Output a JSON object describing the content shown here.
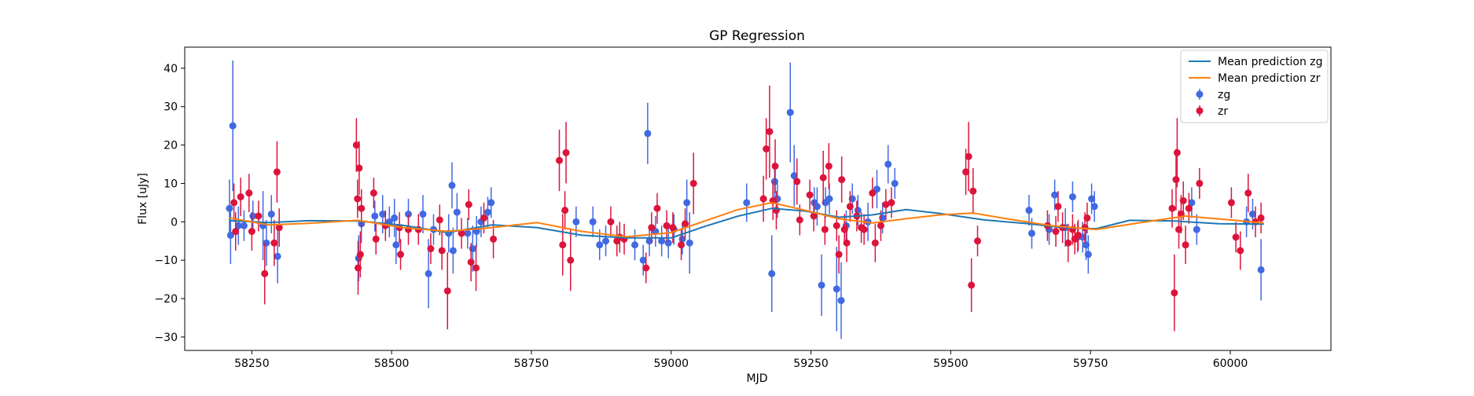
{
  "chart_data": {
    "type": "scatter",
    "title": "GP Regression",
    "xlabel": "MJD",
    "ylabel": "Flux [uJy]",
    "xlim": [
      58130,
      60180
    ],
    "ylim": [
      -33.5,
      45.5
    ],
    "xticks": [
      58250,
      58500,
      58750,
      59000,
      59250,
      59500,
      59750,
      60000
    ],
    "yticks": [
      -30,
      -20,
      -10,
      0,
      10,
      20,
      30,
      40
    ],
    "xtick_labels": [
      "58250",
      "58500",
      "58750",
      "59000",
      "59250",
      "59500",
      "59750",
      "60000"
    ],
    "ytick_labels": [
      "−30",
      "−20",
      "−10",
      "0",
      "10",
      "20",
      "30",
      "40"
    ],
    "grid": false,
    "legend_position": "top-right",
    "series": [
      {
        "name": "Mean prediction zg",
        "kind": "line",
        "color": "#1f77b4",
        "x": [
          58210,
          58280,
          58350,
          58440,
          58520,
          58600,
          58680,
          58760,
          58840,
          58920,
          59000,
          59060,
          59120,
          59180,
          59240,
          59300,
          59360,
          59420,
          59480,
          59560,
          59640,
          59700,
          59760,
          59820,
          59900,
          59980,
          60060
        ],
        "y": [
          0.3,
          -0.2,
          0.3,
          0.2,
          -0.9,
          -2.8,
          -0.8,
          -1.5,
          -3.5,
          -4.2,
          -4.2,
          -1.2,
          1.5,
          3.5,
          2.8,
          1.2,
          1.8,
          3.2,
          2.2,
          0.5,
          -0.5,
          -1.5,
          -1.8,
          0.4,
          0.2,
          -0.5,
          -0.6
        ]
      },
      {
        "name": "Mean prediction zr",
        "kind": "line",
        "color": "#ff7f0e",
        "x": [
          58210,
          58280,
          58350,
          58440,
          58520,
          58600,
          58680,
          58760,
          58840,
          58920,
          59000,
          59060,
          59120,
          59180,
          59240,
          59300,
          59360,
          59420,
          59480,
          59540,
          59600,
          59680,
          59760,
          59840,
          59920,
          60000,
          60060
        ],
        "y": [
          1.0,
          -0.8,
          -0.4,
          0.4,
          -1.5,
          -2.5,
          -1.5,
          -0.2,
          -2.5,
          -3.9,
          -2.8,
          0.2,
          3.2,
          5.0,
          3.0,
          0.8,
          -0.3,
          0.8,
          1.8,
          2.3,
          0.8,
          -1.0,
          -2.0,
          -0.2,
          1.5,
          0.5,
          -0.3
        ]
      },
      {
        "name": "zg",
        "kind": "errorbar",
        "color": "#4169e1",
        "points": [
          [
            58210,
            3.5,
            7.5
          ],
          [
            58212,
            -3.5,
            7.5
          ],
          [
            58216,
            25,
            17
          ],
          [
            58226,
            -1,
            5
          ],
          [
            58236,
            -1,
            4
          ],
          [
            58252,
            1.5,
            4
          ],
          [
            58270,
            -1,
            9
          ],
          [
            58276,
            -5.5,
            6
          ],
          [
            58285,
            2,
            5
          ],
          [
            58296,
            -9,
            7
          ],
          [
            58441,
            -9.5,
            6
          ],
          [
            58446,
            -0.5,
            5
          ],
          [
            58470,
            1.5,
            4
          ],
          [
            58484,
            2,
            5
          ],
          [
            58496,
            0,
            4
          ],
          [
            58505,
            1,
            5
          ],
          [
            58508,
            -6,
            5
          ],
          [
            58530,
            2,
            4
          ],
          [
            58556,
            2,
            5
          ],
          [
            58566,
            -13.5,
            9
          ],
          [
            58575,
            -2,
            4
          ],
          [
            58602,
            -3,
            5
          ],
          [
            58608,
            9.5,
            6
          ],
          [
            58610,
            -7.5,
            6
          ],
          [
            58617,
            2.5,
            5
          ],
          [
            58636,
            -3,
            4
          ],
          [
            58645,
            -7,
            6
          ],
          [
            58652,
            -2.5,
            4
          ],
          [
            58660,
            0,
            4
          ],
          [
            58672,
            2.5,
            4
          ],
          [
            58678,
            5,
            4
          ],
          [
            58830,
            0,
            4
          ],
          [
            58860,
            0,
            4
          ],
          [
            58872,
            -6,
            4
          ],
          [
            58883,
            -5,
            4
          ],
          [
            58935,
            -6,
            4
          ],
          [
            58950,
            -10,
            4
          ],
          [
            58958,
            23,
            8
          ],
          [
            58961,
            -5,
            4
          ],
          [
            58972,
            -2.5,
            4
          ],
          [
            58983,
            -5,
            4
          ],
          [
            58995,
            -5.5,
            4
          ],
          [
            59005,
            -2,
            4
          ],
          [
            59020,
            -4.5,
            4
          ],
          [
            59028,
            5,
            6
          ],
          [
            59033,
            -5.5,
            8
          ],
          [
            59135,
            5,
            5
          ],
          [
            59180,
            -13.5,
            10
          ],
          [
            59185,
            10.5,
            5
          ],
          [
            59190,
            6,
            5
          ],
          [
            59213,
            28.5,
            13
          ],
          [
            59220,
            12,
            8
          ],
          [
            59256,
            5,
            4
          ],
          [
            59261,
            4,
            5
          ],
          [
            59269,
            -16.5,
            8
          ],
          [
            59276,
            5,
            4
          ],
          [
            59283,
            6,
            4
          ],
          [
            59296,
            -17.5,
            11
          ],
          [
            59304,
            -20.5,
            10
          ],
          [
            59313,
            -1,
            4
          ],
          [
            59324,
            6,
            4
          ],
          [
            59334,
            3,
            4
          ],
          [
            59352,
            0,
            5
          ],
          [
            59368,
            8.5,
            5
          ],
          [
            59378,
            1,
            4
          ],
          [
            59388,
            15,
            5
          ],
          [
            59400,
            10,
            4
          ],
          [
            59640,
            3,
            4
          ],
          [
            59645,
            -3,
            4
          ],
          [
            59676,
            -2,
            4
          ],
          [
            59686,
            7,
            4
          ],
          [
            59705,
            -1.5,
            5
          ],
          [
            59718,
            6.5,
            4
          ],
          [
            59727,
            -4,
            4
          ],
          [
            59736,
            -4,
            4
          ],
          [
            59742,
            -6,
            4
          ],
          [
            59746,
            -8.5,
            5
          ],
          [
            59752,
            6,
            4
          ],
          [
            59757,
            4,
            4
          ],
          [
            59931,
            5,
            4
          ],
          [
            59940,
            -2,
            4
          ],
          [
            60029,
            0,
            4
          ],
          [
            60040,
            2,
            4
          ],
          [
            60055,
            -12.5,
            8
          ]
        ]
      },
      {
        "name": "zr",
        "kind": "errorbar",
        "color": "#dc143c",
        "points": [
          [
            58218,
            5,
            5
          ],
          [
            58221,
            -2.5,
            5
          ],
          [
            58230,
            6.5,
            5
          ],
          [
            58245,
            7.5,
            5
          ],
          [
            58250,
            -2.5,
            5
          ],
          [
            58262,
            1.5,
            4
          ],
          [
            58273,
            -13.5,
            8
          ],
          [
            58290,
            -5.5,
            6
          ],
          [
            58295,
            13,
            8
          ],
          [
            58299,
            -1.5,
            5
          ],
          [
            58437,
            20,
            7
          ],
          [
            58439,
            6,
            5
          ],
          [
            58440,
            -12,
            7
          ],
          [
            58442,
            14,
            7
          ],
          [
            58444,
            -8.5,
            6
          ],
          [
            58446,
            3.5,
            5
          ],
          [
            58468,
            7.5,
            4
          ],
          [
            58472,
            -4.5,
            4
          ],
          [
            58489,
            -1,
            4
          ],
          [
            58514,
            -1.5,
            4
          ],
          [
            58516,
            -8.5,
            4
          ],
          [
            58530,
            -2,
            4
          ],
          [
            58548,
            -2,
            4
          ],
          [
            58570,
            -7,
            4
          ],
          [
            58586,
            0.5,
            4
          ],
          [
            58590,
            -7.5,
            5
          ],
          [
            58600,
            -18,
            10
          ],
          [
            58625,
            -3,
            4
          ],
          [
            58638,
            4.5,
            4
          ],
          [
            58642,
            -10.5,
            5
          ],
          [
            58651,
            -12,
            6
          ],
          [
            58665,
            1,
            4
          ],
          [
            58682,
            -4.5,
            5
          ],
          [
            58800,
            16,
            8
          ],
          [
            58806,
            -6,
            8
          ],
          [
            58810,
            3,
            5
          ],
          [
            58812,
            18,
            8
          ],
          [
            58820,
            -10,
            8
          ],
          [
            58892,
            0,
            4
          ],
          [
            58903,
            -5,
            4
          ],
          [
            58908,
            -4,
            4
          ],
          [
            58916,
            -4.5,
            4
          ],
          [
            58955,
            -12,
            4
          ],
          [
            58965,
            -1.5,
            4
          ],
          [
            58975,
            3.5,
            4
          ],
          [
            58992,
            -1,
            4
          ],
          [
            59003,
            -1.5,
            4
          ],
          [
            59018,
            -6,
            4
          ],
          [
            59025,
            -0.5,
            4
          ],
          [
            59040,
            10,
            8
          ],
          [
            59165,
            6,
            6
          ],
          [
            59170,
            19,
            8
          ],
          [
            59176,
            23.5,
            12
          ],
          [
            59182,
            5.5,
            5
          ],
          [
            59186,
            14.5,
            7
          ],
          [
            59188,
            3,
            5
          ],
          [
            59225,
            10.5,
            6
          ],
          [
            59230,
            0.5,
            4
          ],
          [
            59248,
            7,
            4
          ],
          [
            59255,
            1.5,
            4
          ],
          [
            59272,
            11.5,
            7
          ],
          [
            59275,
            -2,
            4
          ],
          [
            59282,
            14.5,
            6
          ],
          [
            59296,
            -1,
            4
          ],
          [
            59300,
            -8.5,
            5
          ],
          [
            59305,
            11,
            6
          ],
          [
            59310,
            -2,
            4
          ],
          [
            59314,
            -5.5,
            5
          ],
          [
            59320,
            4,
            4
          ],
          [
            59332,
            1.5,
            4
          ],
          [
            59340,
            -1.5,
            4
          ],
          [
            59345,
            -2,
            4
          ],
          [
            59360,
            7.5,
            4
          ],
          [
            59365,
            -5.5,
            5
          ],
          [
            59375,
            -1,
            4
          ],
          [
            59384,
            4.5,
            4
          ],
          [
            59394,
            5,
            4
          ],
          [
            59527,
            13,
            6
          ],
          [
            59532,
            17,
            9
          ],
          [
            59537,
            -16.5,
            7
          ],
          [
            59540,
            8,
            6
          ],
          [
            59548,
            -5,
            4
          ],
          [
            59673,
            -1,
            4
          ],
          [
            59688,
            -2.5,
            4
          ],
          [
            59692,
            4,
            4
          ],
          [
            59700,
            -1.5,
            4
          ],
          [
            59710,
            -5.5,
            5
          ],
          [
            59718,
            -2,
            4
          ],
          [
            59722,
            -4.5,
            4
          ],
          [
            59728,
            -3.5,
            4
          ],
          [
            59740,
            -1.5,
            4
          ],
          [
            59744,
            1,
            4
          ],
          [
            59896,
            3.5,
            5
          ],
          [
            59900,
            -18.5,
            10
          ],
          [
            59903,
            11,
            8
          ],
          [
            59905,
            18,
            9
          ],
          [
            59908,
            -2,
            5
          ],
          [
            59912,
            2,
            5
          ],
          [
            59916,
            5.5,
            5
          ],
          [
            59920,
            -6,
            5
          ],
          [
            59926,
            3.5,
            4
          ],
          [
            59945,
            10,
            4
          ],
          [
            60002,
            5,
            4
          ],
          [
            60010,
            -4,
            4
          ],
          [
            60018,
            -7.5,
            5
          ],
          [
            60032,
            7.5,
            5
          ],
          [
            60045,
            0,
            4
          ],
          [
            60055,
            1,
            4
          ]
        ]
      }
    ]
  }
}
